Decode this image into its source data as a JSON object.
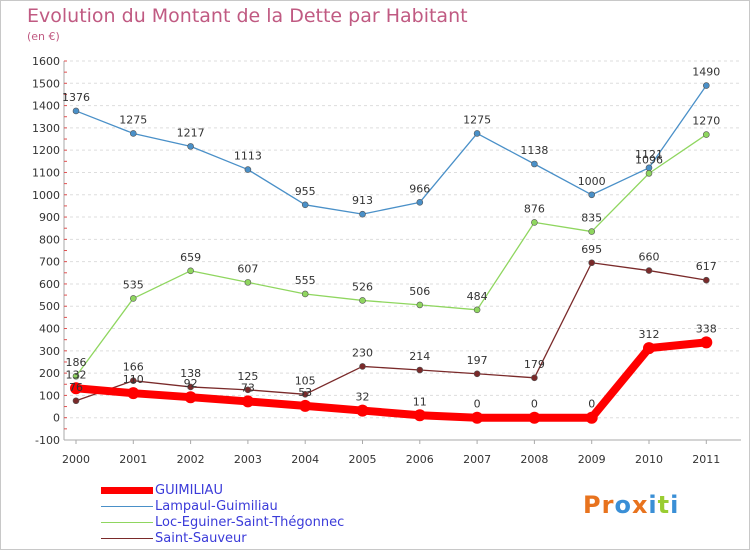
{
  "title": "Evolution du Montant de la Dette par Habitant",
  "subtitle": "(en €)",
  "logo": {
    "text": "Proxiti",
    "colors": [
      "#e8731e",
      "#e8731e",
      "#3a8fd6",
      "#e8731e",
      "#3a8fd6",
      "#9acd32",
      "#3a8fd6"
    ]
  },
  "chart_data": {
    "type": "line",
    "title": "Evolution du Montant de la Dette par Habitant",
    "ylabel": "(en €)",
    "xlabel": "",
    "x": [
      "2000",
      "2001",
      "2002",
      "2003",
      "2004",
      "2005",
      "2006",
      "2007",
      "2008",
      "2009",
      "2010",
      "2011"
    ],
    "ylim": [
      -100,
      1600
    ],
    "yticks": [
      "-100",
      "0",
      "100",
      "200",
      "300",
      "400",
      "500",
      "600",
      "700",
      "800",
      "900",
      "1000",
      "1100",
      "1200",
      "1300",
      "1400",
      "1500",
      "1600"
    ],
    "grid": "horizontal dashed",
    "legend_position": "bottom-left",
    "series": [
      {
        "name": "GUIMILIAU",
        "color": "#ff0000",
        "values": [
          132,
          110,
          92,
          73,
          53,
          32,
          11,
          0,
          0,
          0,
          312,
          338
        ]
      },
      {
        "name": "Lampaul-Guimiliau",
        "color": "#4a90c8",
        "values": [
          1376,
          1275,
          1217,
          1113,
          955,
          913,
          966,
          1275,
          1138,
          1000,
          1121,
          1490
        ]
      },
      {
        "name": "Loc-Eguiner-Saint-Thégonnec",
        "color": "#8fd65f",
        "values": [
          186,
          535,
          659,
          607,
          555,
          526,
          506,
          484,
          876,
          835,
          1096,
          1270
        ]
      },
      {
        "name": "Saint-Sauveur",
        "color": "#7a2a2a",
        "values": [
          76,
          166,
          138,
          125,
          105,
          230,
          214,
          197,
          179,
          695,
          660,
          617
        ]
      }
    ]
  }
}
